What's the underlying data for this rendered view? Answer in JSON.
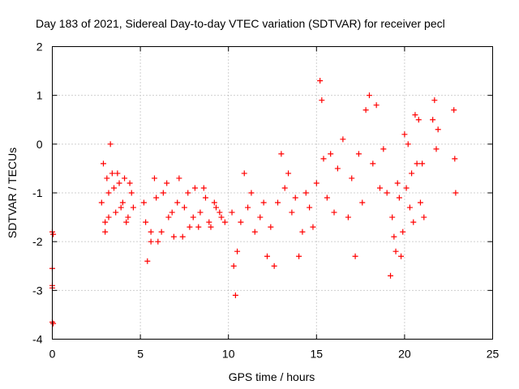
{
  "chart_data": {
    "type": "scatter",
    "title": "Day 183 of 2021, Sidereal Day-to-day VTEC variation (SDTVAR) for receiver pecl",
    "xlabel": "GPS time / hours",
    "ylabel": "SDTVAR / TECUs",
    "xlim": [
      0,
      25
    ],
    "ylim": [
      -4,
      2
    ],
    "xticks": [
      0,
      5,
      10,
      15,
      20,
      25
    ],
    "yticks": [
      -4,
      -3,
      -2,
      -1,
      0,
      1,
      2
    ],
    "grid": true,
    "legend": "none",
    "marker": "plus",
    "colors": {
      "points": "#ff0000",
      "frame": "#000000",
      "grid": "#a0a0a0"
    },
    "series": [
      {
        "name": "SDTVAR",
        "x": [
          0.0,
          0.0,
          0.0,
          0.0,
          0.0,
          0.05,
          0.05,
          2.8,
          2.9,
          3.0,
          3.1,
          3.2,
          3.3,
          3.5,
          3.7,
          3.9,
          4.1,
          4.3,
          4.5,
          3.0,
          3.2,
          3.4,
          3.6,
          3.8,
          4.0,
          4.2,
          4.4,
          4.6,
          5.2,
          5.4,
          5.6,
          5.8,
          6.0,
          6.3,
          6.6,
          6.9,
          7.2,
          7.5,
          7.8,
          8.1,
          8.4,
          8.7,
          9.0,
          9.3,
          9.6,
          5.3,
          5.6,
          5.9,
          6.2,
          6.5,
          6.8,
          7.1,
          7.4,
          7.7,
          8.0,
          8.3,
          8.6,
          8.9,
          9.2,
          9.5,
          9.8,
          10.2,
          10.3,
          10.4,
          10.5,
          10.7,
          10.9,
          11.1,
          11.3,
          11.5,
          11.8,
          12.0,
          12.2,
          12.4,
          12.6,
          12.8,
          13.0,
          13.2,
          13.4,
          13.6,
          13.8,
          14.0,
          14.2,
          14.4,
          14.6,
          14.8,
          15.0,
          15.2,
          15.3,
          15.4,
          15.6,
          15.8,
          16.0,
          16.2,
          16.5,
          16.8,
          17.0,
          17.2,
          17.4,
          17.6,
          17.8,
          18.0,
          18.2,
          18.4,
          18.6,
          18.8,
          19.0,
          19.2,
          19.4,
          19.6,
          19.8,
          20.0,
          20.2,
          20.4,
          20.6,
          20.8,
          21.0,
          19.3,
          19.5,
          19.7,
          19.9,
          20.1,
          20.3,
          20.5,
          20.7,
          20.9,
          21.1,
          21.6,
          21.7,
          21.8,
          21.9,
          22.8,
          22.85,
          22.9
        ],
        "y": [
          -1.8,
          -2.55,
          -2.9,
          -2.95,
          -3.65,
          -3.68,
          -1.85,
          -1.2,
          -0.4,
          -1.8,
          -0.7,
          -1.5,
          0.0,
          -0.9,
          -0.6,
          -1.3,
          -0.7,
          -1.5,
          -1.0,
          -1.6,
          -1.0,
          -0.6,
          -1.4,
          -0.8,
          -1.2,
          -1.6,
          -0.8,
          -1.3,
          -1.2,
          -2.4,
          -1.8,
          -0.7,
          -2.0,
          -1.0,
          -1.5,
          -1.9,
          -0.7,
          -1.3,
          -1.7,
          -0.9,
          -1.4,
          -1.1,
          -1.7,
          -1.3,
          -1.5,
          -1.6,
          -2.0,
          -1.1,
          -1.8,
          -0.8,
          -1.4,
          -1.2,
          -1.9,
          -1.0,
          -1.5,
          -1.7,
          -0.9,
          -1.6,
          -1.2,
          -1.4,
          -1.6,
          -1.4,
          -2.5,
          -3.1,
          -2.2,
          -1.6,
          -0.6,
          -1.3,
          -1.0,
          -1.8,
          -1.5,
          -1.2,
          -2.3,
          -1.7,
          -2.5,
          -1.2,
          -0.2,
          -0.9,
          -0.6,
          -1.4,
          -1.1,
          -2.3,
          -1.8,
          -1.0,
          -1.3,
          -1.7,
          -0.8,
          1.3,
          0.9,
          -0.3,
          -1.1,
          -0.2,
          -1.4,
          -0.5,
          0.1,
          -1.5,
          -0.7,
          -2.3,
          -0.2,
          -1.2,
          0.7,
          1.0,
          -0.4,
          0.8,
          -0.9,
          -0.1,
          -1.0,
          -2.7,
          -1.9,
          -0.8,
          -2.3,
          0.2,
          0.0,
          -0.6,
          0.6,
          0.5,
          -0.4,
          -1.5,
          -2.2,
          -1.1,
          -1.8,
          -0.9,
          -1.3,
          -1.6,
          -0.4,
          -1.2,
          -1.5,
          0.5,
          0.9,
          -0.1,
          0.3,
          0.7,
          -0.3,
          -1.0
        ]
      }
    ]
  }
}
